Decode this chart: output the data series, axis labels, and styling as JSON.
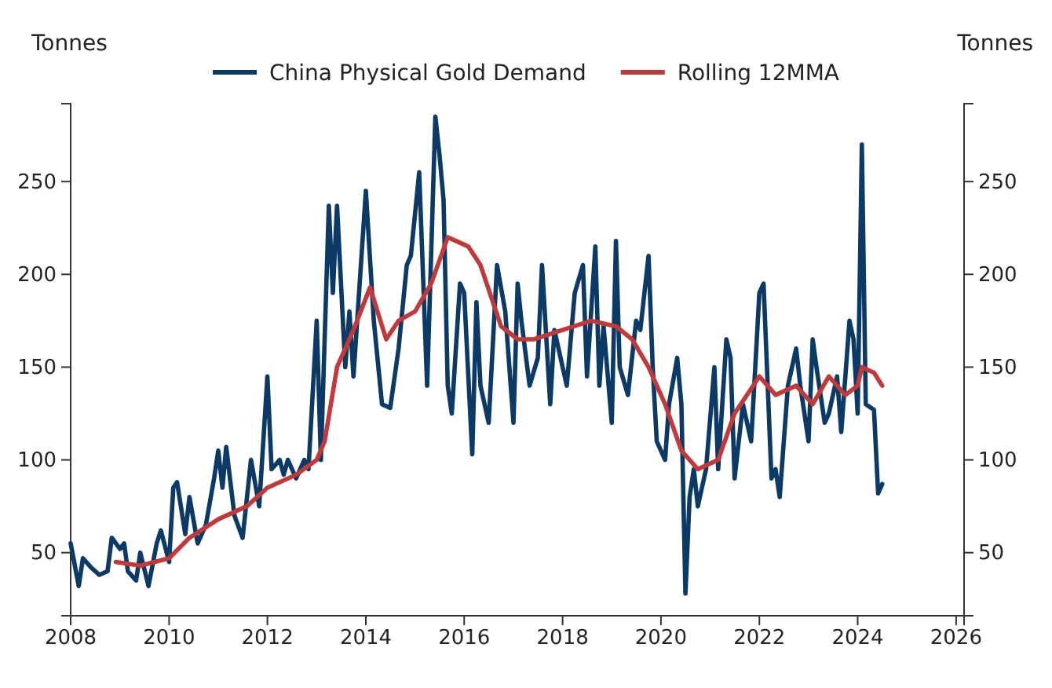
{
  "chart_data": {
    "type": "line",
    "ylabel": "Tonnes",
    "y2label": "Tonnes",
    "legend": "top",
    "line_style": "solid",
    "marker": "none",
    "grid": false,
    "xlim": [
      "2008-01",
      "2026-03"
    ],
    "xticks": [
      "2008",
      "2010",
      "2012",
      "2014",
      "2016",
      "2018",
      "2020",
      "2022",
      "2024",
      "2026"
    ],
    "ylim": [
      16,
      292
    ],
    "yticks": [
      50,
      100,
      150,
      200,
      250
    ],
    "y2lim": [
      16,
      292
    ],
    "y2ticks": [
      50,
      100,
      150,
      200,
      250
    ],
    "series": [
      {
        "name": "China Physical Gold Demand",
        "color": "#0b3a66",
        "x": [
          "2008-01",
          "2008-03",
          "2008-04",
          "2008-06",
          "2008-08",
          "2008-10",
          "2008-11",
          "2009-01",
          "2009-02",
          "2009-03",
          "2009-05",
          "2009-06",
          "2009-08",
          "2009-10",
          "2009-11",
          "2010-01",
          "2010-02",
          "2010-03",
          "2010-05",
          "2010-06",
          "2010-08",
          "2010-10",
          "2010-12",
          "2011-01",
          "2011-02",
          "2011-03",
          "2011-05",
          "2011-07",
          "2011-09",
          "2011-11",
          "2012-01",
          "2012-02",
          "2012-04",
          "2012-05",
          "2012-06",
          "2012-08",
          "2012-10",
          "2012-11",
          "2013-01",
          "2013-02",
          "2013-04",
          "2013-05",
          "2013-06",
          "2013-08",
          "2013-09",
          "2013-10",
          "2014-01",
          "2014-03",
          "2014-05",
          "2014-07",
          "2014-09",
          "2014-11",
          "2014-12",
          "2015-02",
          "2015-04",
          "2015-06",
          "2015-07",
          "2015-08",
          "2015-09",
          "2015-10",
          "2015-12",
          "2016-01",
          "2016-03",
          "2016-04",
          "2016-05",
          "2016-07",
          "2016-09",
          "2016-11",
          "2017-01",
          "2017-02",
          "2017-03",
          "2017-05",
          "2017-07",
          "2017-08",
          "2017-10",
          "2017-11",
          "2018-01",
          "2018-02",
          "2018-04",
          "2018-06",
          "2018-07",
          "2018-09",
          "2018-10",
          "2018-11",
          "2019-01",
          "2019-02",
          "2019-03",
          "2019-05",
          "2019-07",
          "2019-08",
          "2019-10",
          "2019-11",
          "2019-12",
          "2020-02",
          "2020-03",
          "2020-05",
          "2020-06",
          "2020-07",
          "2020-08",
          "2020-09",
          "2020-10",
          "2020-12",
          "2021-02",
          "2021-03",
          "2021-05",
          "2021-06",
          "2021-07",
          "2021-09",
          "2021-11",
          "2022-01",
          "2022-02",
          "2022-04",
          "2022-05",
          "2022-06",
          "2022-08",
          "2022-10",
          "2022-11",
          "2023-01",
          "2023-02",
          "2023-03",
          "2023-05",
          "2023-06",
          "2023-08",
          "2023-09",
          "2023-11",
          "2023-12",
          "2024-01",
          "2024-02",
          "2024-03",
          "2024-05",
          "2024-06",
          "2024-07"
        ],
        "values": [
          55,
          32,
          47,
          42,
          38,
          40,
          58,
          52,
          55,
          40,
          35,
          50,
          32,
          55,
          62,
          45,
          85,
          88,
          60,
          80,
          55,
          65,
          90,
          105,
          85,
          107,
          70,
          58,
          100,
          75,
          145,
          95,
          100,
          92,
          100,
          90,
          100,
          95,
          175,
          100,
          237,
          190,
          237,
          150,
          180,
          145,
          245,
          175,
          130,
          128,
          160,
          205,
          210,
          255,
          140,
          285,
          265,
          240,
          140,
          125,
          195,
          190,
          103,
          185,
          140,
          120,
          205,
          180,
          120,
          195,
          175,
          140,
          155,
          205,
          130,
          170,
          150,
          140,
          190,
          205,
          145,
          215,
          140,
          172,
          120,
          218,
          150,
          135,
          175,
          170,
          210,
          150,
          110,
          100,
          130,
          155,
          130,
          28,
          80,
          95,
          75,
          95,
          150,
          95,
          165,
          155,
          90,
          130,
          110,
          190,
          195,
          90,
          95,
          80,
          140,
          160,
          140,
          110,
          165,
          150,
          120,
          125,
          145,
          115,
          175,
          165,
          125,
          270,
          130,
          127,
          82,
          87
        ]
      },
      {
        "name": "Rolling 12MMA",
        "color": "#c0393b",
        "x": [
          "2008-12",
          "2009-06",
          "2010-01",
          "2010-06",
          "2011-01",
          "2011-08",
          "2012-01",
          "2012-08",
          "2013-01",
          "2013-03",
          "2013-06",
          "2013-10",
          "2014-02",
          "2014-06",
          "2014-09",
          "2015-01",
          "2015-05",
          "2015-09",
          "2016-02",
          "2016-05",
          "2016-10",
          "2017-02",
          "2017-06",
          "2018-01",
          "2018-08",
          "2019-02",
          "2019-06",
          "2019-10",
          "2020-02",
          "2020-06",
          "2020-10",
          "2021-03",
          "2021-07",
          "2022-01",
          "2022-05",
          "2022-10",
          "2023-02",
          "2023-06",
          "2023-10",
          "2024-01",
          "2024-02",
          "2024-05",
          "2024-07"
        ],
        "values": [
          45,
          43,
          47,
          58,
          68,
          75,
          85,
          92,
          100,
          110,
          150,
          170,
          193,
          165,
          175,
          180,
          195,
          220,
          215,
          205,
          172,
          165,
          165,
          170,
          175,
          172,
          165,
          150,
          130,
          105,
          95,
          100,
          125,
          145,
          135,
          140,
          130,
          145,
          135,
          140,
          150,
          147,
          140
        ]
      }
    ]
  }
}
